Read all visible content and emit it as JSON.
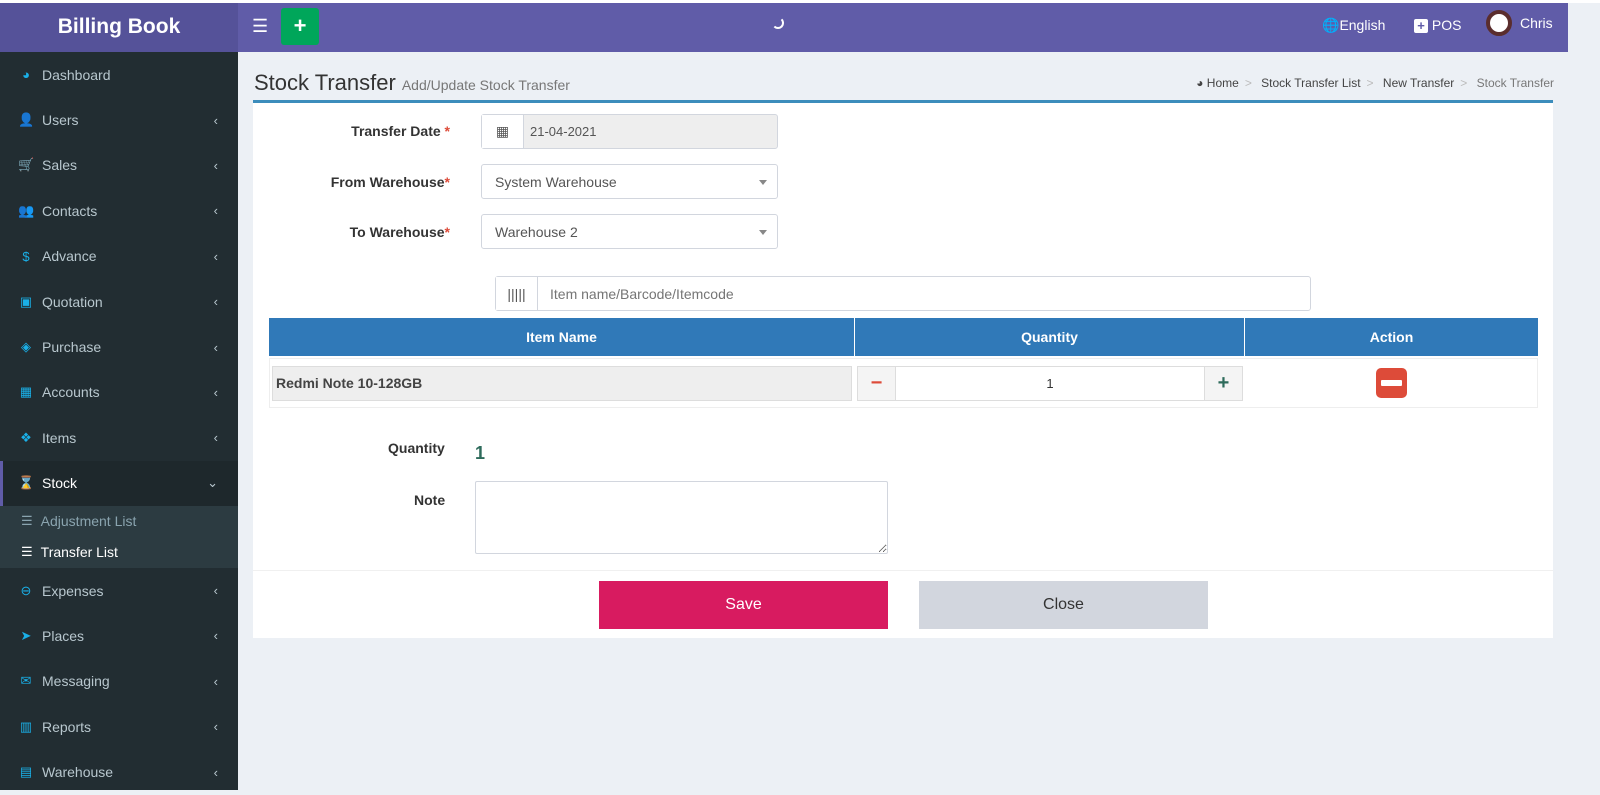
{
  "header": {
    "brand": "Billing Book",
    "language": "English",
    "pos": "POS",
    "user": "Chris",
    "menu_icon": "hamburger-icon",
    "add_icon": "plus-icon"
  },
  "sidebar": {
    "items": [
      {
        "label": "Dashboard",
        "icon": "dashboard-icon",
        "glyph": "◕",
        "chevron": ""
      },
      {
        "label": "Users",
        "icon": "user-plus-icon",
        "glyph": "👤",
        "chevron": "‹"
      },
      {
        "label": "Sales",
        "icon": "cart-icon",
        "glyph": "🛒",
        "chevron": "‹"
      },
      {
        "label": "Contacts",
        "icon": "users-icon",
        "glyph": "👥",
        "chevron": "‹"
      },
      {
        "label": "Advance",
        "icon": "dollar-icon",
        "glyph": "$",
        "chevron": "‹"
      },
      {
        "label": "Quotation",
        "icon": "calendar-plus-icon",
        "glyph": "▣",
        "chevron": "‹"
      },
      {
        "label": "Purchase",
        "icon": "cube-icon",
        "glyph": "◈",
        "chevron": "‹"
      },
      {
        "label": "Accounts",
        "icon": "grid-icon",
        "glyph": "▦",
        "chevron": "‹"
      },
      {
        "label": "Items",
        "icon": "cubes-icon",
        "glyph": "❖",
        "chevron": "‹"
      },
      {
        "label": "Stock",
        "icon": "hourglass-icon",
        "glyph": "⌛",
        "chevron": "⌄"
      }
    ],
    "stock_sub": [
      {
        "label": "Adjustment List"
      },
      {
        "label": "Transfer List"
      }
    ],
    "items_after": [
      {
        "label": "Expenses",
        "icon": "minus-circle-icon",
        "glyph": "⊖",
        "chevron": "‹"
      },
      {
        "label": "Places",
        "icon": "paper-plane-icon",
        "glyph": "➤",
        "chevron": "‹"
      },
      {
        "label": "Messaging",
        "icon": "envelope-icon",
        "glyph": "✉",
        "chevron": "‹"
      },
      {
        "label": "Reports",
        "icon": "bar-chart-icon",
        "glyph": "▥",
        "chevron": "‹"
      },
      {
        "label": "Warehouse",
        "icon": "building-icon",
        "glyph": "▤",
        "chevron": "‹"
      }
    ]
  },
  "page": {
    "title": "Stock Transfer",
    "subtitle": "Add/Update Stock Transfer"
  },
  "breadcrumb": [
    "Home",
    "Stock Transfer List",
    "New Transfer",
    "Stock Transfer"
  ],
  "form": {
    "transfer_date_label": "Transfer Date",
    "transfer_date": "21-04-2021",
    "from_label": "From Warehouse",
    "from_value": "System Warehouse",
    "to_label": "To Warehouse",
    "to_value": "Warehouse 2",
    "search_placeholder": "Item name/Barcode/Itemcode",
    "required": "*"
  },
  "table": {
    "headers": [
      "Item Name",
      "Quantity",
      "Action"
    ],
    "rows": [
      {
        "item": "Redmi Note 10-128GB",
        "qty": "1"
      }
    ]
  },
  "summary": {
    "quantity_label": "Quantity",
    "quantity": "1",
    "note_label": "Note",
    "note": ""
  },
  "buttons": {
    "save": "Save",
    "close": "Close"
  },
  "colors": {
    "header": "#605ca8",
    "sidebar": "#222d32",
    "save": "#d81b60",
    "table_head": "#3079b8",
    "remove": "#dd4b39"
  }
}
